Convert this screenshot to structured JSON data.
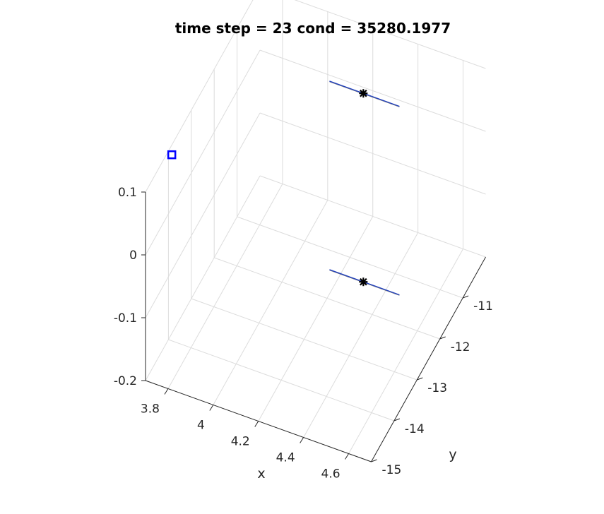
{
  "chart_data": {
    "type": "scatter",
    "title": "time step = 23 cond = 35280.1977",
    "xlabel": "x",
    "ylabel": "y",
    "zlabel": "",
    "xlim": [
      3.7,
      4.7
    ],
    "ylim": [
      -15,
      -10
    ],
    "zlim": [
      -0.2,
      0.1
    ],
    "xticks": [
      "3.8",
      "4",
      "4.2",
      "4.4",
      "4.6"
    ],
    "yticks": [
      "-11",
      "-12",
      "-13",
      "-14",
      "-15"
    ],
    "zticks": [
      "0.1",
      "0",
      "-0.1",
      "-0.2"
    ],
    "grid": true,
    "colors": {
      "line": "#1f3fbf",
      "marker_square": "#0000ff",
      "marker_star": "#000000"
    },
    "series": [
      {
        "marker": "square",
        "points": [
          {
            "x": 3.72,
            "y": -14.05,
            "z": 0.1
          }
        ]
      },
      {
        "marker": "star-line",
        "points": [
          {
            "x": 4.3,
            "y": -11.4,
            "z": 0.1
          }
        ],
        "segment_x": [
          4.15,
          4.46
        ]
      },
      {
        "marker": "star-line",
        "points": [
          {
            "x": 4.3,
            "y": -11.4,
            "z": -0.2
          }
        ],
        "segment_x": [
          4.15,
          4.46
        ]
      }
    ]
  }
}
